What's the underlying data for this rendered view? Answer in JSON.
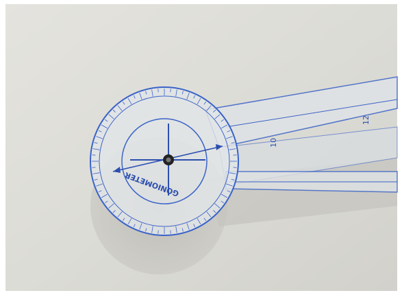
{
  "photo": {
    "dial_text": "GONIOMETER",
    "arm_numbers": [
      "10",
      "12"
    ]
  }
}
